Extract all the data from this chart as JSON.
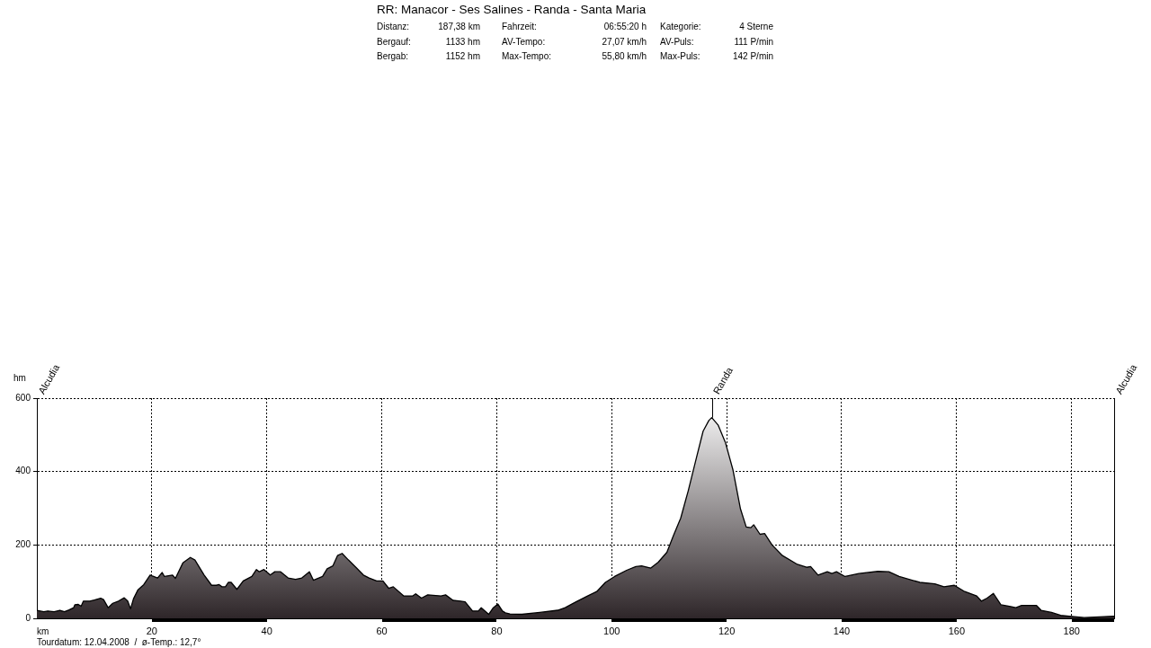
{
  "chart_data": {
    "type": "area",
    "title": "RR: Manacor - Ses Salines - Randa - Santa Maria",
    "subtitle": "Distanz:\t187,38 km\tFahrzeit:\t06:55:20 h\tKategorie:\t4 Sterne\nBergauf:\t1133 hm\tAV-Tempo:\t27,07 km/h\tAV-Puls:\t111 P/min\nBergab:\t1152 hm\tMax-Tempo:\t55,80 km/h\tMax-Puls:\t142 P/min",
    "xlabel": "km",
    "ylabel": "hm",
    "x": [
      0,
      1.2,
      1.9,
      3.0,
      4.0,
      4.8,
      5.6,
      6.4,
      6.6,
      7.2,
      7.7,
      8.1,
      9.2,
      10.0,
      11.1,
      11.6,
      12.4,
      13.2,
      14.2,
      15.2,
      15.8,
      16.3,
      16.8,
      17.6,
      18.6,
      19.7,
      20.0,
      21.0,
      21.8,
      22.2,
      23.6,
      24.1,
      25.4,
      26.7,
      27.5,
      29.1,
      30.4,
      31.2,
      31.7,
      32.2,
      32.8,
      33.3,
      33.8,
      34.8,
      35.9,
      37.4,
      38.2,
      38.7,
      39.5,
      40.6,
      41.4,
      42.4,
      43.7,
      45.0,
      46.1,
      47.4,
      48.1,
      49.7,
      50.5,
      51.5,
      52.3,
      53.1,
      54.2,
      55.5,
      56.8,
      57.8,
      59.1,
      60.2,
      61.2,
      62.0,
      63.8,
      65.4,
      65.9,
      66.9,
      68.0,
      70.3,
      71.1,
      72.4,
      73.7,
      74.5,
      75.8,
      76.8,
      77.3,
      78.6,
      79.4,
      80.2,
      81.0,
      81.5,
      82.3,
      84.4,
      87.5,
      90.6,
      91.9,
      93.8,
      95.8,
      97.4,
      98.9,
      100.5,
      102.6,
      104.2,
      105.2,
      106.8,
      108.1,
      109.6,
      110.7,
      112.0,
      113.3,
      114.6,
      115.9,
      116.9,
      117.4,
      118.5,
      119.8,
      121.1,
      122.4,
      123.4,
      124.2,
      124.7,
      125.8,
      126.6,
      127.9,
      129.7,
      132.3,
      133.9,
      134.6,
      135.9,
      137.5,
      138.3,
      139.1,
      140.6,
      143.0,
      146.3,
      148.2,
      150.0,
      153.6,
      156.2,
      157.8,
      159.6,
      161.4,
      163.5,
      164.3,
      165.3,
      166.4,
      167.7,
      169.2,
      170.3,
      171.3,
      173.9,
      174.7,
      176.5,
      178.1,
      179.6,
      182.2,
      184.8,
      187.4
    ],
    "values": [
      22,
      18,
      20,
      18,
      22,
      18,
      23,
      29,
      37,
      38,
      33,
      47,
      47,
      50,
      55,
      51,
      29,
      41,
      47,
      56,
      47,
      26,
      53,
      78,
      92,
      118,
      116,
      110,
      125,
      114,
      118,
      109,
      151,
      166,
      159,
      118,
      90,
      90,
      92,
      86,
      86,
      98,
      98,
      79,
      102,
      114,
      133,
      127,
      133,
      118,
      127,
      127,
      110,
      106,
      110,
      127,
      104,
      114,
      135,
      143,
      171,
      177,
      159,
      139,
      118,
      110,
      102,
      102,
      82,
      86,
      61,
      61,
      67,
      55,
      64,
      61,
      64,
      49,
      47,
      45,
      20,
      20,
      29,
      11,
      29,
      39,
      20,
      15,
      12,
      11,
      16,
      22,
      29,
      45,
      61,
      73,
      98,
      114,
      131,
      141,
      143,
      137,
      153,
      180,
      224,
      273,
      347,
      429,
      510,
      539,
      547,
      527,
      478,
      404,
      298,
      249,
      247,
      255,
      229,
      231,
      200,
      171,
      147,
      139,
      141,
      118,
      127,
      122,
      127,
      114,
      122,
      128,
      127,
      114,
      98,
      94,
      86,
      90,
      73,
      61,
      47,
      55,
      68,
      37,
      33,
      29,
      35,
      35,
      22,
      16,
      8,
      6,
      2,
      4,
      6
    ],
    "color": "#2e2629",
    "xlim": [
      0,
      187.4
    ],
    "xticks": [
      20,
      40,
      60,
      80,
      100,
      120,
      140,
      160,
      180
    ],
    "ylim": [
      0,
      600
    ],
    "yticks": [
      0,
      200,
      400,
      600
    ],
    "grid": true,
    "marker": "none",
    "annotations": [
      "Alcudia",
      {
        "text": "Randa",
        "x": 117.4,
        "y": 547
      },
      "Alcudia",
      "Tourdatum: 12.04.2008  /  ø-Temp.: 12,7°"
    ]
  }
}
